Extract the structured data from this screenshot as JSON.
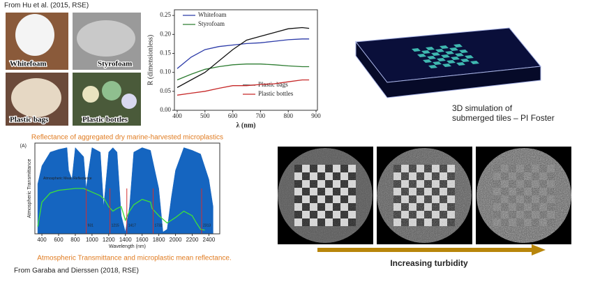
{
  "header": {
    "source": "From Hu et al. (2015, RSE)"
  },
  "photos": [
    "Whitefoam",
    "Styrofoam",
    "Plastic bags",
    "Plastic bottles"
  ],
  "chart_data": [
    {
      "type": "line",
      "xlabel": "λ (nm)",
      "ylabel": "R (dimensionless)",
      "x": [
        400,
        450,
        500,
        550,
        600,
        650,
        700,
        750,
        800,
        850,
        875
      ],
      "series": [
        {
          "name": "Whitefoam",
          "color": "#2b3aa8",
          "values": [
            0.11,
            0.14,
            0.16,
            0.168,
            0.172,
            0.176,
            0.178,
            0.182,
            0.186,
            0.188,
            0.188
          ]
        },
        {
          "name": "Styrofoam",
          "color": "#2e7d32",
          "values": [
            0.08,
            0.095,
            0.108,
            0.115,
            0.12,
            0.122,
            0.122,
            0.12,
            0.117,
            0.115,
            0.115
          ]
        },
        {
          "name": "Plastic bags",
          "color": "#111111",
          "values": [
            0.06,
            0.08,
            0.1,
            0.13,
            0.16,
            0.185,
            0.195,
            0.205,
            0.215,
            0.218,
            0.216
          ]
        },
        {
          "name": "Plastic bottles",
          "color": "#c62828",
          "values": [
            0.04,
            0.045,
            0.05,
            0.058,
            0.065,
            0.065,
            0.068,
            0.07,
            0.075,
            0.08,
            0.08
          ]
        }
      ],
      "xlim": [
        390,
        905
      ],
      "ylim": [
        0,
        0.265
      ],
      "xticks": [
        400,
        500,
        600,
        700,
        800,
        900
      ],
      "yticks": [
        {
          "value": 0,
          "label": "0.00"
        },
        {
          "value": 0.05,
          "label": "0.05"
        },
        {
          "value": 0.1,
          "label": "0.10"
        },
        {
          "value": 0.15,
          "label": "0.15"
        },
        {
          "value": 0.2,
          "label": "0.20"
        },
        {
          "value": 0.25,
          "label": "0.25"
        }
      ]
    },
    {
      "type": "line",
      "title": "Reflectance of aggregated dry marine-harvested microplastics",
      "panel_label": "(A)",
      "caption": "Atmospheric Transmittance and microplastic mean reflectance.",
      "xlabel": "Wavelength (nm)",
      "ylabel": "Atmospheric Transmittance",
      "series": [
        {
          "color": "#1565c0",
          "fill": true,
          "x": [
            350,
            400,
            500,
            600,
            700,
            720,
            760,
            800,
            900,
            930,
            960,
            1000,
            1100,
            1140,
            1200,
            1250,
            1300,
            1350,
            1400,
            1450,
            1500,
            1600,
            1700,
            1800,
            1850,
            1900,
            1950,
            2000,
            2100,
            2200,
            2300,
            2400,
            2450
          ],
          "values": [
            0.55,
            0.75,
            0.9,
            0.93,
            0.95,
            0.7,
            0.6,
            0.95,
            0.85,
            0.5,
            0.7,
            0.95,
            0.9,
            0.3,
            0.9,
            0.95,
            0.9,
            0.2,
            0.02,
            0.3,
            0.9,
            0.95,
            0.92,
            0.5,
            0.02,
            0.05,
            0.4,
            0.7,
            0.95,
            0.92,
            0.88,
            0.6,
            0.3
          ]
        },
        {
          "name": "Atmospheric Mean Reflectance",
          "color": "#3ee03a",
          "x": [
            350,
            400,
            500,
            600,
            800,
            900,
            1000,
            1100,
            1150,
            1200,
            1250,
            1300,
            1350,
            1400,
            1450,
            1500,
            1600,
            1700,
            1720,
            1800,
            1900,
            2000,
            2100,
            2200,
            2250,
            2300,
            2350
          ],
          "values": [
            0.08,
            0.35,
            0.45,
            0.48,
            0.5,
            0.5,
            0.46,
            0.42,
            0.38,
            0.3,
            0.25,
            0.28,
            0.3,
            0.15,
            0.25,
            0.32,
            0.38,
            0.35,
            0.28,
            0.2,
            0.12,
            0.18,
            0.25,
            0.2,
            0.12,
            0.05,
            0.04
          ]
        }
      ],
      "reference_lines": [
        931,
        1215,
        1417,
        1732,
        2313
      ],
      "reference_color": "#d32f2f",
      "xlim": [
        316,
        2530
      ],
      "ylim": [
        0,
        1
      ],
      "xticks": [
        400,
        600,
        800,
        1000,
        1200,
        1400,
        1600,
        1800,
        2000,
        2200,
        2400
      ]
    }
  ],
  "simulation": {
    "caption": [
      "3D simulation of",
      "submerged tiles – PI Foster"
    ]
  },
  "turbidity": {
    "label": "Increasing turbidity"
  },
  "footer": {
    "source": "From Garaba and Dierssen (2018, RSE)"
  }
}
